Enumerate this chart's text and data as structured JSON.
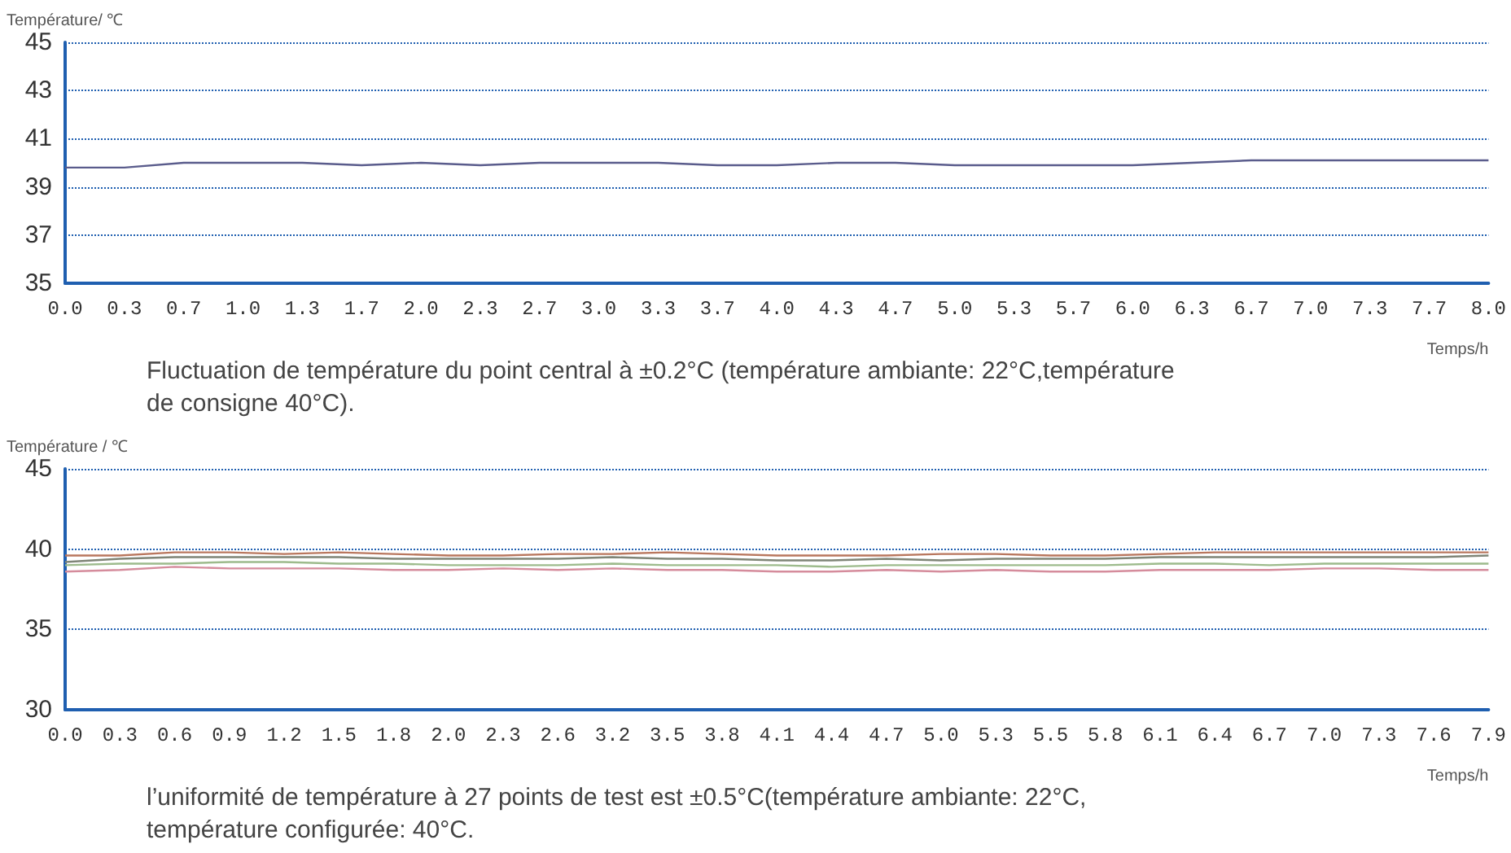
{
  "chart_data": [
    {
      "type": "line",
      "ylabel": "Température/ ℃",
      "xlabel": "Temps/h",
      "categories": [
        "0.0",
        "0.3",
        "0.7",
        "1.0",
        "1.3",
        "1.7",
        "2.0",
        "2.3",
        "2.7",
        "3.0",
        "3.3",
        "3.7",
        "4.0",
        "4.3",
        "4.7",
        "5.0",
        "5.3",
        "5.7",
        "6.0",
        "6.3",
        "6.7",
        "7.0",
        "7.3",
        "7.7",
        "8.0"
      ],
      "series": [
        {
          "color": "#5a5c8c",
          "values": [
            39.8,
            39.8,
            40.0,
            40.0,
            40.0,
            39.9,
            40.0,
            39.9,
            40.0,
            40.0,
            40.0,
            39.9,
            39.9,
            40.0,
            40.0,
            39.9,
            39.9,
            39.9,
            39.9,
            40.0,
            40.1,
            40.1,
            40.1,
            40.1,
            40.1
          ]
        }
      ],
      "ylim": [
        35,
        45
      ],
      "yticks": [
        35,
        37,
        39,
        41,
        43,
        45
      ],
      "grid": "y",
      "marker": "none",
      "line_style": "solid",
      "annotations": [
        "Fluctuation de température du point central à ±0.2°C (température ambiante: 22°C,température de consigne 40°C)."
      ]
    },
    {
      "type": "line",
      "ylabel": "Température / ℃",
      "xlabel": "Temps/h",
      "categories": [
        "0.0",
        "0.3",
        "0.6",
        "0.9",
        "1.2",
        "1.5",
        "1.8",
        "2.0",
        "2.3",
        "2.6",
        "3.2",
        "3.5",
        "3.8",
        "4.1",
        "4.4",
        "4.7",
        "5.0",
        "5.3",
        "5.5",
        "5.8",
        "6.1",
        "6.4",
        "6.7",
        "7.0",
        "7.3",
        "7.6",
        "7.9"
      ],
      "series": [
        {
          "color": "#b9775e",
          "values": [
            39.6,
            39.6,
            39.8,
            39.8,
            39.7,
            39.8,
            39.7,
            39.6,
            39.6,
            39.7,
            39.7,
            39.8,
            39.7,
            39.6,
            39.6,
            39.6,
            39.7,
            39.7,
            39.6,
            39.6,
            39.7,
            39.8,
            39.8,
            39.8,
            39.8,
            39.8,
            39.8
          ]
        },
        {
          "color": "#7f8577",
          "values": [
            39.2,
            39.4,
            39.5,
            39.5,
            39.5,
            39.5,
            39.4,
            39.4,
            39.4,
            39.4,
            39.5,
            39.4,
            39.4,
            39.3,
            39.3,
            39.4,
            39.3,
            39.4,
            39.4,
            39.4,
            39.5,
            39.5,
            39.5,
            39.5,
            39.5,
            39.5,
            39.6
          ]
        },
        {
          "color": "#9dbb8c",
          "values": [
            39.0,
            39.1,
            39.1,
            39.2,
            39.2,
            39.1,
            39.1,
            39.0,
            39.0,
            39.0,
            39.1,
            39.0,
            39.0,
            39.0,
            38.9,
            39.0,
            39.0,
            39.0,
            39.0,
            39.0,
            39.1,
            39.1,
            39.0,
            39.1,
            39.1,
            39.1,
            39.1
          ]
        },
        {
          "color": "#d58c9c",
          "values": [
            38.6,
            38.7,
            38.9,
            38.8,
            38.8,
            38.8,
            38.7,
            38.7,
            38.8,
            38.7,
            38.8,
            38.7,
            38.7,
            38.6,
            38.6,
            38.7,
            38.6,
            38.7,
            38.6,
            38.6,
            38.7,
            38.7,
            38.7,
            38.8,
            38.8,
            38.7,
            38.7
          ]
        }
      ],
      "ylim": [
        30,
        45
      ],
      "yticks": [
        30,
        35,
        40,
        45
      ],
      "grid": "y",
      "marker": "none",
      "line_style": "solid",
      "annotations": [
        "l’uniformité de température à 27 points de test est ±0.5°C(température ambiante: 22°C, température configurée: 40°C."
      ]
    }
  ]
}
